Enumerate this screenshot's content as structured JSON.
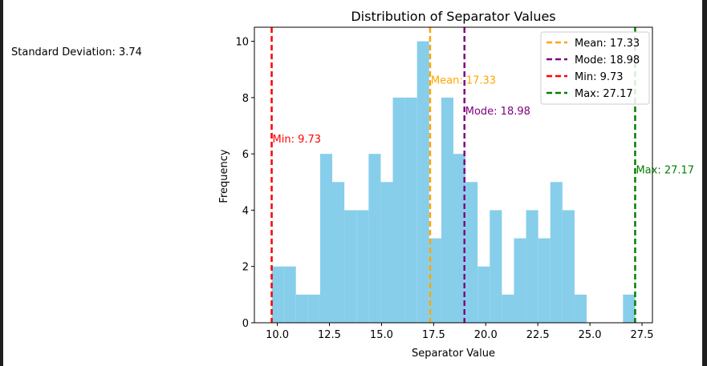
{
  "side_note": "Standard Deviation: 3.74",
  "colors": {
    "bar": "#87CEEB",
    "mean": "#FFA500",
    "mode": "#800080",
    "min": "#FF0000",
    "max": "#008000"
  },
  "chart_data": {
    "type": "bar",
    "title": "Distribution of Separator Values",
    "xlabel": "Separator Value",
    "ylabel": "Frequency",
    "xlim": [
      8.9,
      28.0
    ],
    "ylim": [
      0,
      10.5
    ],
    "xticks": [
      10.0,
      12.5,
      15.0,
      17.5,
      20.0,
      22.5,
      25.0,
      27.5
    ],
    "xtick_labels": [
      "10.0",
      "12.5",
      "15.0",
      "17.5",
      "20.0",
      "22.5",
      "25.0",
      "27.5"
    ],
    "yticks": [
      0,
      2,
      4,
      6,
      8,
      10
    ],
    "ytick_labels": [
      "0",
      "2",
      "4",
      "6",
      "8",
      "10"
    ],
    "bins": {
      "start": 9.73,
      "width": 0.5813,
      "counts": [
        2,
        2,
        1,
        1,
        6,
        5,
        4,
        4,
        6,
        5,
        8,
        8,
        10,
        3,
        8,
        6,
        5,
        2,
        4,
        1,
        3,
        4,
        3,
        5,
        4,
        1,
        0,
        0,
        0,
        1
      ]
    },
    "lines": [
      {
        "key": "mean",
        "value": 17.33,
        "legend": "Mean: 17.33",
        "label": "Mean: 17.33",
        "label_y": 8.5
      },
      {
        "key": "mode",
        "value": 18.98,
        "legend": "Mode: 18.98",
        "label": "Mode: 18.98",
        "label_y": 7.4
      },
      {
        "key": "min",
        "value": 9.73,
        "legend": "Min: 9.73",
        "label": "Min: 9.73",
        "label_y": 6.4
      },
      {
        "key": "max",
        "value": 27.17,
        "legend": "Max: 27.17",
        "label": "Max: 27.17",
        "label_y": 5.3
      }
    ],
    "grid": false,
    "legend_position": "top-right"
  }
}
